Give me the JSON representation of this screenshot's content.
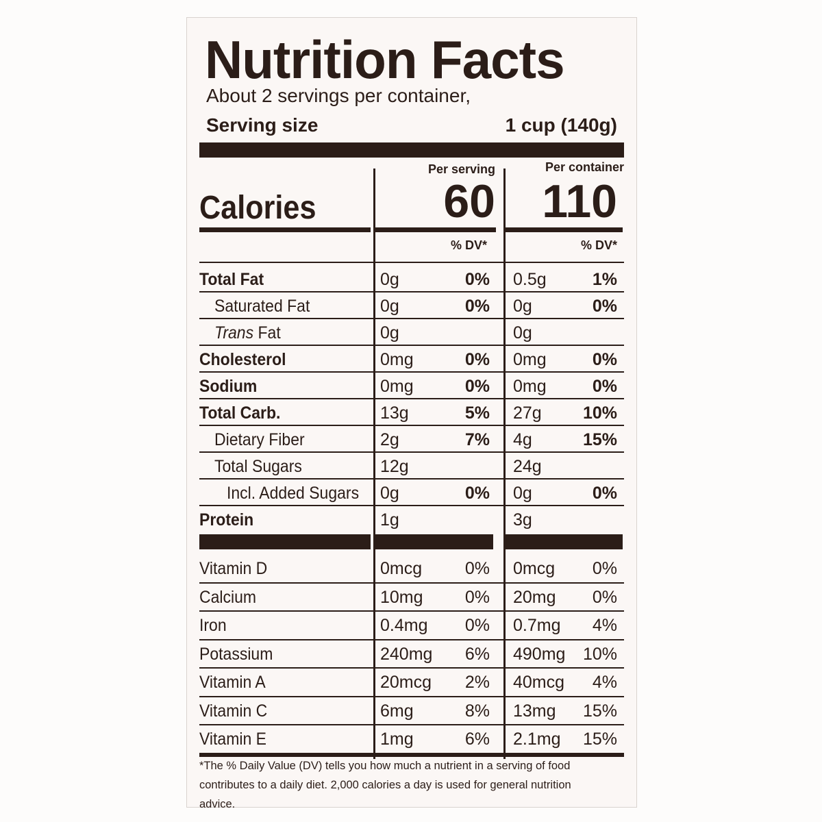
{
  "title": "Nutrition Facts",
  "servings_per_container": "About 2 servings per container,",
  "serving_size_label": "Serving size",
  "serving_size_value": "1 cup (140g)",
  "col_per_serving": "Per serving",
  "col_per_container": "Per container",
  "calories_label": "Calories",
  "calories_per_serving": "60",
  "calories_per_container": "110",
  "dv_header": "% DV*",
  "nutrients": [
    {
      "name": "Total Fat",
      "amt1": "0g",
      "pct1": "0%",
      "amt2": "0.5g",
      "pct2": "1%"
    },
    {
      "name": "Saturated Fat",
      "amt1": "0g",
      "pct1": "0%",
      "amt2": "0g",
      "pct2": "0%"
    },
    {
      "name": "Trans",
      "name_suffix": " Fat",
      "amt1": "0g",
      "pct1": "",
      "amt2": "0g",
      "pct2": ""
    },
    {
      "name": "Cholesterol",
      "amt1": "0mg",
      "pct1": "0%",
      "amt2": "0mg",
      "pct2": "0%"
    },
    {
      "name": "Sodium",
      "amt1": "0mg",
      "pct1": "0%",
      "amt2": "0mg",
      "pct2": "0%"
    },
    {
      "name": "Total Carb.",
      "amt1": "13g",
      "pct1": "5%",
      "amt2": "27g",
      "pct2": "10%"
    },
    {
      "name": "Dietary Fiber",
      "amt1": "2g",
      "pct1": "7%",
      "amt2": "4g",
      "pct2": "15%"
    },
    {
      "name": "Total Sugars",
      "amt1": "12g",
      "pct1": "",
      "amt2": "24g",
      "pct2": ""
    },
    {
      "name": "Incl. Added Sugars",
      "amt1": "0g",
      "pct1": "0%",
      "amt2": "0g",
      "pct2": "0%"
    },
    {
      "name": "Protein",
      "amt1": "1g",
      "pct1": "",
      "amt2": "3g",
      "pct2": ""
    }
  ],
  "vitamins": [
    {
      "name": "Vitamin D",
      "amt1": "0mcg",
      "pct1": "0%",
      "amt2": "0mcg",
      "pct2": "0%"
    },
    {
      "name": "Calcium",
      "amt1": "10mg",
      "pct1": "0%",
      "amt2": "20mg",
      "pct2": "0%"
    },
    {
      "name": "Iron",
      "amt1": "0.4mg",
      "pct1": "0%",
      "amt2": "0.7mg",
      "pct2": "4%"
    },
    {
      "name": "Potassium",
      "amt1": "240mg",
      "pct1": "6%",
      "amt2": "490mg",
      "pct2": "10%"
    },
    {
      "name": "Vitamin A",
      "amt1": "20mcg",
      "pct1": "2%",
      "amt2": "40mcg",
      "pct2": "4%"
    },
    {
      "name": "Vitamin C",
      "amt1": "6mg",
      "pct1": "8%",
      "amt2": "13mg",
      "pct2": "15%"
    },
    {
      "name": "Vitamin E",
      "amt1": "1mg",
      "pct1": "6%",
      "amt2": "2.1mg",
      "pct2": "15%"
    }
  ],
  "footnote": "*The % Daily Value (DV) tells you how much a nutrient in a serving of food contributes to a daily diet. 2,000 calories a day is used for general nutrition advice."
}
